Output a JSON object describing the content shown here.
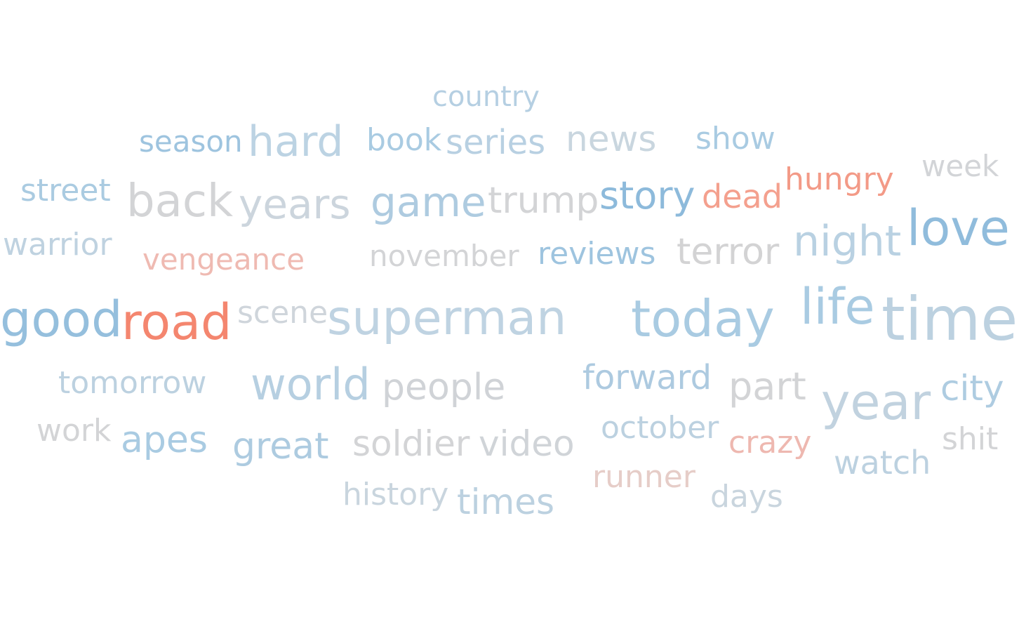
{
  "palette": {
    "strong_blue": "#8fbadb",
    "mid_blue": "#a9cbe1",
    "pale_blue": "#bfd3e1",
    "gray": "#d2d2d4",
    "pale_red": "#eab8b1",
    "mid_red": "#f09c8b",
    "strong_red": "#f4846d"
  },
  "words": [
    {
      "text": "country",
      "color": "#b5cfe2"
    },
    {
      "text": "season",
      "color": "#9ec4df"
    },
    {
      "text": "hard",
      "color": "#bcd3e3"
    },
    {
      "text": "book",
      "color": "#a9cbe2"
    },
    {
      "text": "series",
      "color": "#b8d0e2"
    },
    {
      "text": "news",
      "color": "#c9d6df"
    },
    {
      "text": "show",
      "color": "#a9cbe2"
    },
    {
      "text": "hungry",
      "color": "#f39a87"
    },
    {
      "text": "week",
      "color": "#d2d4d7"
    },
    {
      "text": "street",
      "color": "#aacbe1"
    },
    {
      "text": "back",
      "color": "#d3d4d6"
    },
    {
      "text": "years",
      "color": "#ccd5dd"
    },
    {
      "text": "game",
      "color": "#aecbe0"
    },
    {
      "text": "trump",
      "color": "#d3d4d6"
    },
    {
      "text": "story",
      "color": "#8dbadb"
    },
    {
      "text": "dead",
      "color": "#f4a08e"
    },
    {
      "text": "love",
      "color": "#90bcdc"
    },
    {
      "text": "warrior",
      "color": "#bfd2e0"
    },
    {
      "text": "vengeance",
      "color": "#efbab2"
    },
    {
      "text": "november",
      "color": "#d3d4d6"
    },
    {
      "text": "reviews",
      "color": "#9ec4df"
    },
    {
      "text": "terror",
      "color": "#d3d3d4"
    },
    {
      "text": "night",
      "color": "#b9d1e2"
    },
    {
      "text": "good",
      "color": "#95bfdd"
    },
    {
      "text": "road",
      "color": "#f4866f"
    },
    {
      "text": "scene",
      "color": "#cfd5db"
    },
    {
      "text": "superman",
      "color": "#bfd3e2"
    },
    {
      "text": "today",
      "color": "#a9cbe2"
    },
    {
      "text": "life",
      "color": "#a9cbe2"
    },
    {
      "text": "time",
      "color": "#bcd1e0"
    },
    {
      "text": "tomorrow",
      "color": "#bcd1e0"
    },
    {
      "text": "world",
      "color": "#b6cfe1"
    },
    {
      "text": "people",
      "color": "#d0d3d7"
    },
    {
      "text": "forward",
      "color": "#adcae0"
    },
    {
      "text": "part",
      "color": "#d3d4d6"
    },
    {
      "text": "year",
      "color": "#c1d2df"
    },
    {
      "text": "city",
      "color": "#aecce1"
    },
    {
      "text": "work",
      "color": "#d3d4d6"
    },
    {
      "text": "apes",
      "color": "#a9cbe2"
    },
    {
      "text": "great",
      "color": "#adcbe0"
    },
    {
      "text": "soldier",
      "color": "#d3d4d6"
    },
    {
      "text": "video",
      "color": "#d0d4d8"
    },
    {
      "text": "october",
      "color": "#bcd1e0"
    },
    {
      "text": "crazy",
      "color": "#eeb8b0"
    },
    {
      "text": "shit",
      "color": "#d3d4d6"
    },
    {
      "text": "watch",
      "color": "#bcd1e0"
    },
    {
      "text": "runner",
      "color": "#e6cdc8"
    },
    {
      "text": "history",
      "color": "#c9d5de"
    },
    {
      "text": "times",
      "color": "#bcd1e0"
    },
    {
      "text": "days",
      "color": "#c9d5de"
    }
  ]
}
